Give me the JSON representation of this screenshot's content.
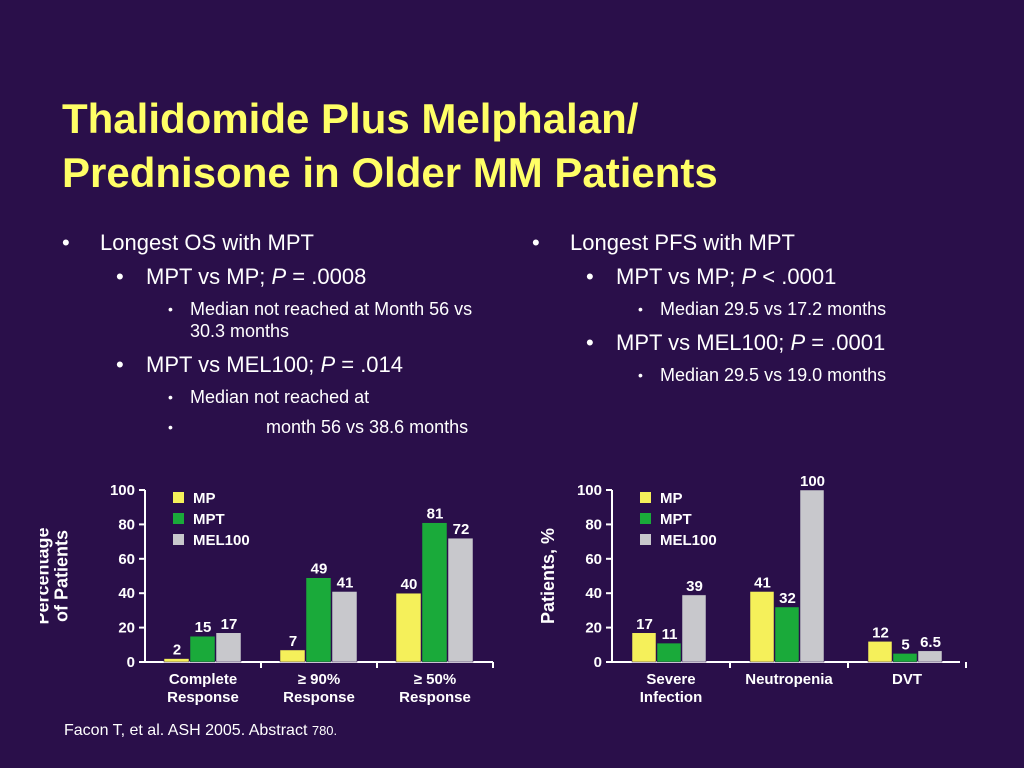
{
  "slide": {
    "title_line1": "Thalidomide Plus Melphalan/",
    "title_line2": "Prednisone in Older MM Patients",
    "left_bullets": {
      "b1": "Longest OS with MPT",
      "b2a_prefix": "MPT vs MP; ",
      "b2a_p": "P",
      "b2a_suffix": " = .0008",
      "b3a": "Median not reached at Month 56 vs 30.3 months",
      "b2b_prefix": "MPT vs MEL100; ",
      "b2b_p": "P",
      "b2b_suffix": " = .014",
      "b3b": "Median not reached at",
      "b3c": "month 56 vs 38.6 months"
    },
    "right_bullets": {
      "b1": "Longest PFS with MPT",
      "b2a_prefix": "MPT vs MP; ",
      "b2a_p": "P",
      "b2a_suffix": " < .0001",
      "b3a": "Median 29.5 vs 17.2 months",
      "b2b_prefix": "MPT vs MEL100; ",
      "b2b_p": "P",
      "b2b_suffix": " = .0001",
      "b3b": "Median 29.5 vs 19.0 months"
    },
    "footnote_main": "Facon T, et al. ASH 2005. Abstract ",
    "footnote_num": "780."
  },
  "colors": {
    "background": "#2a0f4a",
    "title": "#ffff66",
    "MP": "#f5f05a",
    "MPT": "#1aaa3a",
    "MEL100": "#c8c8cc"
  },
  "chart_data": [
    {
      "type": "bar",
      "title": "",
      "ylabel": "Percentage of Patients",
      "ylabel_lines": [
        "Percentage",
        "of Patients"
      ],
      "xlabel": "",
      "ylim": [
        0,
        100
      ],
      "yticks": [
        0,
        20,
        40,
        60,
        80,
        100
      ],
      "categories": [
        [
          "Complete",
          "Response"
        ],
        [
          "≥ 90%",
          "Response"
        ],
        [
          "≥ 50%",
          "Response"
        ]
      ],
      "series": [
        {
          "name": "MP",
          "values": [
            2,
            7,
            40
          ],
          "labels": [
            "2",
            "7",
            "40"
          ]
        },
        {
          "name": "MPT",
          "values": [
            15,
            49,
            81
          ],
          "labels": [
            "15",
            "49",
            "81"
          ]
        },
        {
          "name": "MEL100",
          "values": [
            17,
            41,
            72
          ],
          "labels": [
            "17",
            "41",
            "72"
          ]
        }
      ],
      "legend": "top-left",
      "grid": false
    },
    {
      "type": "bar",
      "title": "",
      "ylabel": "Patients, %",
      "ylabel_lines": [
        "Patients, %"
      ],
      "xlabel": "",
      "ylim": [
        0,
        100
      ],
      "yticks": [
        0,
        20,
        40,
        60,
        80,
        100
      ],
      "categories": [
        [
          "Severe",
          "Infection"
        ],
        [
          "Neutropenia"
        ],
        [
          "DVT"
        ]
      ],
      "series": [
        {
          "name": "MP",
          "values": [
            17,
            41,
            12
          ],
          "labels": [
            "17",
            "41",
            "12"
          ]
        },
        {
          "name": "MPT",
          "values": [
            11,
            32,
            5
          ],
          "labels": [
            "11",
            "32",
            "5"
          ]
        },
        {
          "name": "MEL100",
          "values": [
            39,
            100,
            6.5
          ],
          "labels": [
            "39",
            "100",
            "6.5"
          ]
        }
      ],
      "legend": "top-left",
      "grid": false
    }
  ]
}
